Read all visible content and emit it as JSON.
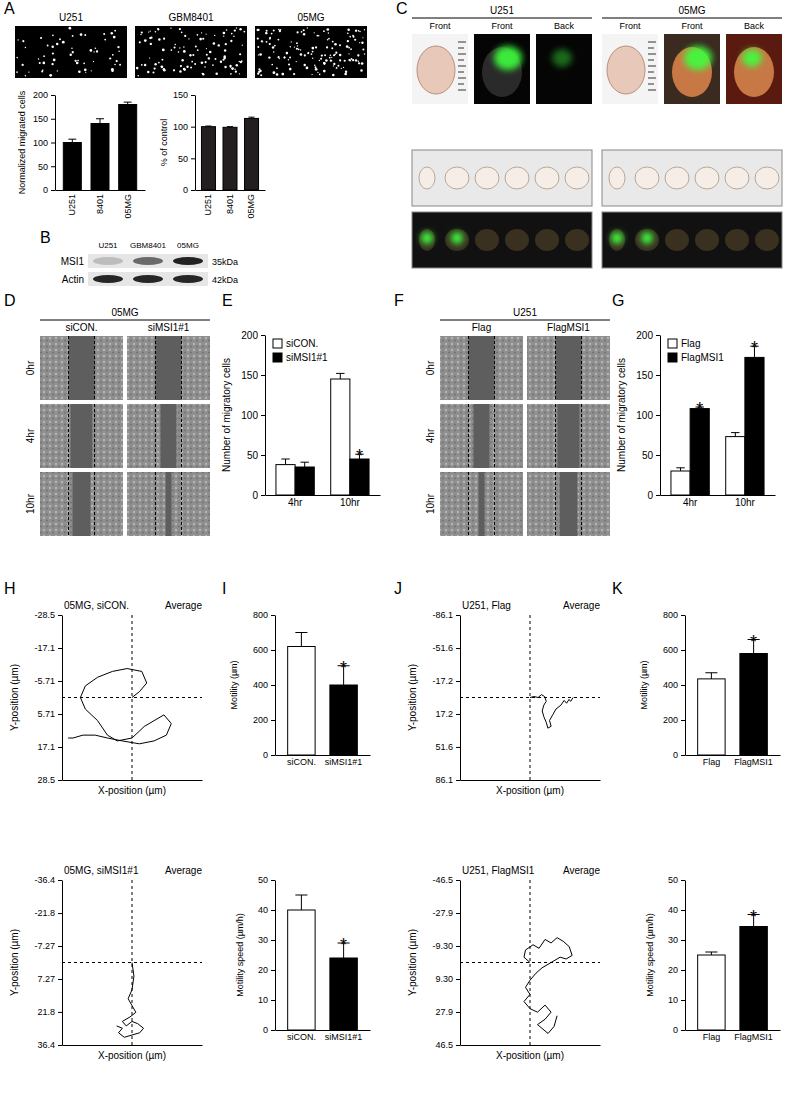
{
  "panel_labels": [
    "A",
    "B",
    "C",
    "D",
    "E",
    "F",
    "G",
    "H",
    "I",
    "J",
    "K"
  ],
  "migration_images": {
    "labels": [
      "U251",
      "GBM8401",
      "05MG"
    ]
  },
  "blot": {
    "lanes": [
      "U251",
      "GBM8401",
      "05MG"
    ],
    "rows": [
      {
        "protein": "MSI1",
        "size": "35kDa"
      },
      {
        "protein": "Actin",
        "size": "42kDa"
      }
    ]
  },
  "brain_images": [
    {
      "name": "U251",
      "views": [
        "Front",
        "Front",
        "Back"
      ]
    },
    {
      "name": "05MG",
      "views": [
        "Front",
        "Front",
        "Back"
      ]
    }
  ],
  "scratch_images": [
    {
      "title": "05MG",
      "columns": [
        "siCON.",
        "siMSI1#1"
      ],
      "rows": [
        "0hr",
        "4hr",
        "10hr"
      ]
    },
    {
      "title": "U251",
      "columns": [
        "Flag",
        "FlagMSI1"
      ],
      "rows": [
        "0hr",
        "4hr",
        "10hr"
      ]
    }
  ],
  "chart_data": [
    {
      "type": "bar",
      "categories": [
        "U251",
        "8401",
        "05MG"
      ],
      "values": [
        100,
        140,
        180
      ],
      "errors": [
        7,
        10,
        5
      ],
      "colors": [
        "#000000",
        "#000000",
        "#000000"
      ],
      "y_label": "Normalized migrated cells",
      "ylim": [
        0,
        200
      ],
      "yticks": [
        0,
        50,
        100,
        150,
        200
      ]
    },
    {
      "type": "bar",
      "categories": [
        "U251",
        "8401",
        "05MG"
      ],
      "values": [
        100,
        99,
        113
      ],
      "errors": [
        1,
        1,
        2
      ],
      "colors": [
        "#231f20",
        "#231f20",
        "#231f20"
      ],
      "y_label": "% of control",
      "ylim": [
        0,
        150
      ],
      "yticks": [
        0,
        50,
        100,
        150
      ]
    },
    {
      "type": "bar",
      "categories": [
        "4hr",
        "10hr"
      ],
      "series": [
        {
          "name": "siCON.",
          "color": "#ffffff",
          "values": [
            38,
            145
          ],
          "errors": [
            7,
            7
          ]
        },
        {
          "name": "siMSI1#1",
          "color": "#000000",
          "values": [
            35,
            45
          ],
          "errors": [
            6,
            6
          ]
        }
      ],
      "y_label": "Number of migratory cells",
      "ylim": [
        0,
        200
      ],
      "yticks": [
        0,
        50,
        100,
        150,
        200
      ],
      "legend": "top-left",
      "annotations": [
        {
          "text": "*",
          "series": 1,
          "index": 1
        }
      ]
    },
    {
      "type": "bar",
      "categories": [
        "4hr",
        "10hr"
      ],
      "series": [
        {
          "name": "Flag",
          "color": "#ffffff",
          "values": [
            30,
            73
          ],
          "errors": [
            4,
            5
          ]
        },
        {
          "name": "FlagMSI1",
          "color": "#000000",
          "values": [
            108,
            172
          ],
          "errors": [
            2,
            14
          ]
        }
      ],
      "y_label": "Number of migratory cells",
      "ylim": [
        0,
        200
      ],
      "yticks": [
        0,
        50,
        100,
        150,
        200
      ],
      "legend": "top-left",
      "annotations": [
        {
          "text": "*",
          "series": 1,
          "index": 0
        },
        {
          "text": "*",
          "series": 1,
          "index": 1
        }
      ]
    },
    {
      "type": "line",
      "title": "05MG, siCON.",
      "annotation": "Average",
      "x": [
        0,
        3,
        6,
        4,
        -2,
        -8,
        -14,
        -19,
        -21,
        -19,
        -14,
        -10,
        -6,
        0,
        5,
        9,
        13,
        16,
        14,
        9,
        3,
        -4,
        -10,
        -15,
        -20,
        -24,
        -26
      ],
      "y": [
        0,
        -2,
        -5,
        -9,
        -10,
        -9,
        -7,
        -4,
        0,
        4,
        8,
        13,
        15,
        14,
        10,
        8,
        6,
        9,
        13,
        15,
        16,
        15,
        14,
        13,
        13,
        14,
        14
      ],
      "xlim": [
        -28.5,
        28.5
      ],
      "ylim": [
        28.5,
        -28.5
      ],
      "yticks": [
        -28.5,
        -17.1,
        -5.71,
        5.71,
        17.1,
        28.5
      ],
      "x_label": "X-position (µm)",
      "y_label": "Y-position (µm)",
      "tick_labels": "y",
      "crosshair": [
        0,
        0
      ],
      "color": "#000000"
    },
    {
      "type": "line",
      "title": "05MG, siMSI1#1",
      "annotation": "Average",
      "x": [
        0,
        1,
        0,
        -2,
        0,
        2,
        -1,
        -5,
        -3,
        0,
        3,
        6,
        4,
        0,
        -4,
        -7,
        -5,
        -8
      ],
      "y": [
        0,
        6,
        12,
        16,
        19,
        22,
        24,
        26,
        28,
        26,
        27,
        29,
        31,
        32,
        33,
        31,
        29,
        28
      ],
      "xlim": [
        -36.4,
        36.4
      ],
      "ylim": [
        36.4,
        -36.4
      ],
      "yticks": [
        -36.4,
        -21.8,
        -7.27,
        7.27,
        21.8,
        36.4
      ],
      "x_label": "X-position (µm)",
      "y_label": "Y-position (µm)",
      "tick_labels": "y",
      "crosshair": [
        0,
        0
      ],
      "color": "#000000"
    },
    {
      "type": "bar",
      "categories": [
        "siCON.",
        "siMSI1#1"
      ],
      "values": [
        620,
        400
      ],
      "errors": [
        80,
        110
      ],
      "colors": [
        "#ffffff",
        "#000000"
      ],
      "y_label": "Motility (µm)",
      "ylim": [
        0,
        800
      ],
      "yticks": [
        0,
        200,
        400,
        600,
        800
      ],
      "annotations": [
        {
          "text": "*",
          "index": 1
        }
      ]
    },
    {
      "type": "bar",
      "categories": [
        "siCON.",
        "siMSI1#1"
      ],
      "values": [
        40,
        24
      ],
      "errors": [
        5,
        5
      ],
      "colors": [
        "#ffffff",
        "#000000"
      ],
      "y_label": "Motility speed (µm/h)",
      "ylim": [
        0,
        50
      ],
      "yticks": [
        0,
        10,
        20,
        30,
        40,
        50
      ],
      "annotations": [
        {
          "text": "*",
          "index": 1
        }
      ]
    },
    {
      "type": "line",
      "title": "U251, Flag",
      "annotation": "Average",
      "x": [
        0,
        5,
        10,
        14,
        18,
        20,
        17,
        15,
        17,
        20,
        22,
        26,
        24,
        28,
        32,
        38,
        42,
        45,
        48,
        50,
        53
      ],
      "y": [
        0,
        -1,
        0,
        -3,
        -1,
        4,
        8,
        14,
        20,
        26,
        32,
        30,
        24,
        18,
        12,
        8,
        3,
        6,
        2,
        4,
        0
      ],
      "xlim": [
        -86.1,
        86.1
      ],
      "ylim": [
        86.1,
        -86.1
      ],
      "yticks": [
        -86.1,
        -51.6,
        -17.2,
        17.2,
        51.6,
        86.1
      ],
      "x_label": "X-position (µm)",
      "y_label": "Y-position (µm)",
      "tick_labels": "y",
      "crosshair": [
        0,
        0
      ],
      "color": "#000000"
    },
    {
      "type": "line",
      "title": "U251, FlagMSI1",
      "annotation": "Average",
      "x": [
        0,
        -4,
        -3,
        2,
        6,
        10,
        14,
        18,
        22,
        26,
        28,
        24,
        20,
        14,
        8,
        4,
        0,
        -3,
        0,
        -4,
        0,
        5,
        10,
        14,
        10,
        5,
        12,
        16,
        18
      ],
      "y": [
        0,
        -3,
        -7,
        -10,
        -8,
        -13,
        -11,
        -14,
        -12,
        -9,
        -4,
        -2,
        -3,
        0,
        3,
        6,
        10,
        14,
        18,
        22,
        26,
        28,
        24,
        28,
        32,
        35,
        40,
        36,
        30
      ],
      "xlim": [
        -46.5,
        46.5
      ],
      "ylim": [
        46.5,
        -46.5
      ],
      "yticks": [
        -46.5,
        -27.9,
        {
          "value": -9.3,
          "label": "-9.30"
        },
        {
          "value": 9.3,
          "label": "9.30"
        },
        27.9,
        46.5
      ],
      "x_label": "X-position (µm)",
      "y_label": "Y-position (µm)",
      "tick_labels": "y",
      "crosshair": [
        0,
        0
      ],
      "color": "#000000"
    },
    {
      "type": "bar",
      "categories": [
        "Flag",
        "FlagMSI1"
      ],
      "values": [
        435,
        580
      ],
      "errors": [
        35,
        80
      ],
      "colors": [
        "#ffffff",
        "#000000"
      ],
      "y_label": "Motility (µm)",
      "ylim": [
        0,
        800
      ],
      "yticks": [
        0,
        200,
        400,
        600,
        800
      ],
      "annotations": [
        {
          "text": "*",
          "index": 1
        }
      ]
    },
    {
      "type": "bar",
      "categories": [
        "Flag",
        "FlagMSI1"
      ],
      "values": [
        25,
        34.5
      ],
      "errors": [
        1,
        4
      ],
      "colors": [
        "#ffffff",
        "#000000"
      ],
      "y_label": "Motility speed (µm/h)",
      "ylim": [
        0,
        50
      ],
      "yticks": [
        0,
        10,
        20,
        30,
        40,
        50
      ],
      "annotations": [
        {
          "text": "*",
          "index": 1
        }
      ]
    }
  ]
}
